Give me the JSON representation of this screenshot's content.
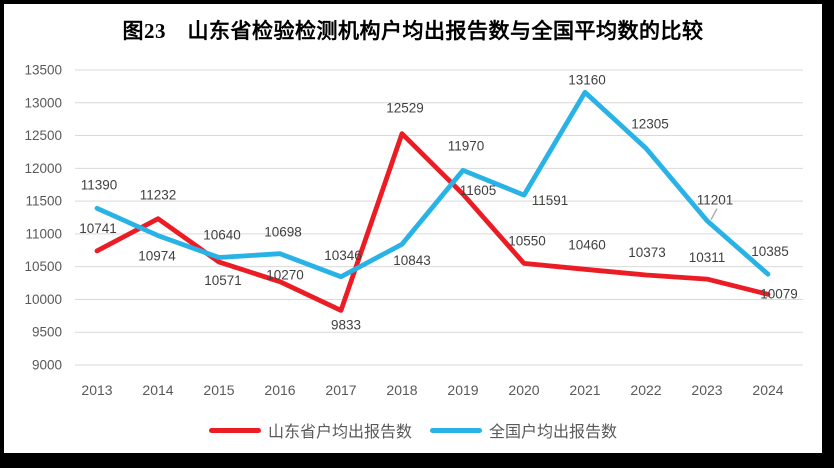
{
  "chart_data": {
    "type": "line",
    "title": "图23　山东省检验检测机构户均出报告数与全国平均数的比较",
    "x": [
      "2013",
      "2014",
      "2015",
      "2016",
      "2017",
      "2018",
      "2019",
      "2020",
      "2021",
      "2022",
      "2023",
      "2024"
    ],
    "series": [
      {
        "name": "山东省户均出报告数",
        "color": "#EC1C24",
        "values": [
          10741,
          11232,
          10571,
          10270,
          9833,
          12529,
          11605,
          10550,
          10460,
          10373,
          10311,
          10079
        ]
      },
      {
        "name": "全国户均出报告数",
        "color": "#29B2E6",
        "values": [
          11390,
          10974,
          10640,
          10698,
          10346,
          10843,
          11970,
          11591,
          13160,
          12305,
          11201,
          10385
        ]
      }
    ],
    "ylim": [
      9000,
      13500
    ],
    "ytick_step": 500,
    "grid": "horizontal",
    "data_labels": true,
    "legend_position": "bottom",
    "callout": {
      "series": 1,
      "index": 10
    }
  },
  "colors": {
    "grid": "#D9D9D9",
    "tick_text": "#595959",
    "data_label_text": "#404040",
    "leader_line": "#A6A6A6",
    "frame": "#000000",
    "background": "#FFFFFF"
  }
}
